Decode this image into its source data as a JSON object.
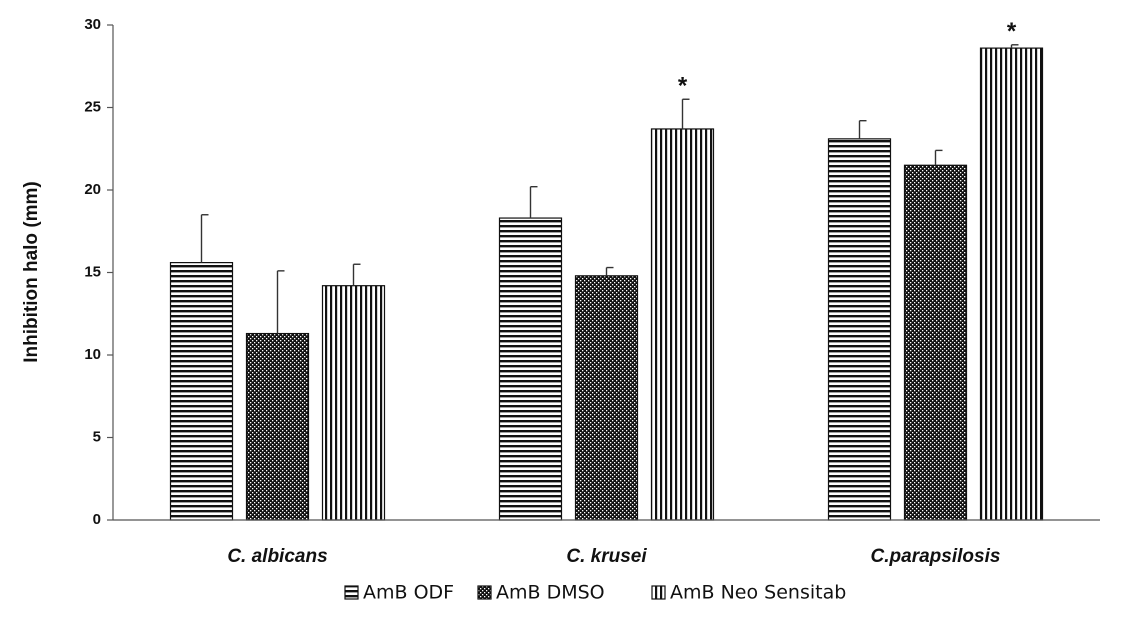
{
  "chart_data": {
    "type": "bar",
    "title": "",
    "xlabel": "",
    "ylabel": "Inhibition halo (mm)",
    "ylim": [
      0,
      30
    ],
    "yticks": [
      0,
      5,
      10,
      15,
      20,
      25,
      30
    ],
    "ytick_labels": [
      "0",
      "5",
      "10",
      "15",
      "20",
      "25",
      "30"
    ],
    "categories": [
      "C. albicans",
      "C. krusei",
      "C.parapsilosis"
    ],
    "series": [
      {
        "name": "AmB ODF",
        "pattern": "horizontal-stripes",
        "values": [
          15.6,
          18.3,
          23.1
        ],
        "errors": [
          2.9,
          1.9,
          1.1
        ]
      },
      {
        "name": "AmB DMSO",
        "pattern": "dense-dots",
        "values": [
          11.3,
          14.8,
          21.5
        ],
        "errors": [
          3.8,
          0.5,
          0.9
        ]
      },
      {
        "name": "AmB Neo Sensitab",
        "pattern": "vertical-stripes",
        "values": [
          14.2,
          23.7,
          28.6
        ],
        "errors": [
          1.3,
          1.8,
          0.2
        ]
      }
    ],
    "annotations": [
      {
        "series": 2,
        "category": 1,
        "text": "*"
      },
      {
        "series": 2,
        "category": 2,
        "text": "*"
      }
    ],
    "grid": false,
    "legend_position": "bottom-center"
  }
}
